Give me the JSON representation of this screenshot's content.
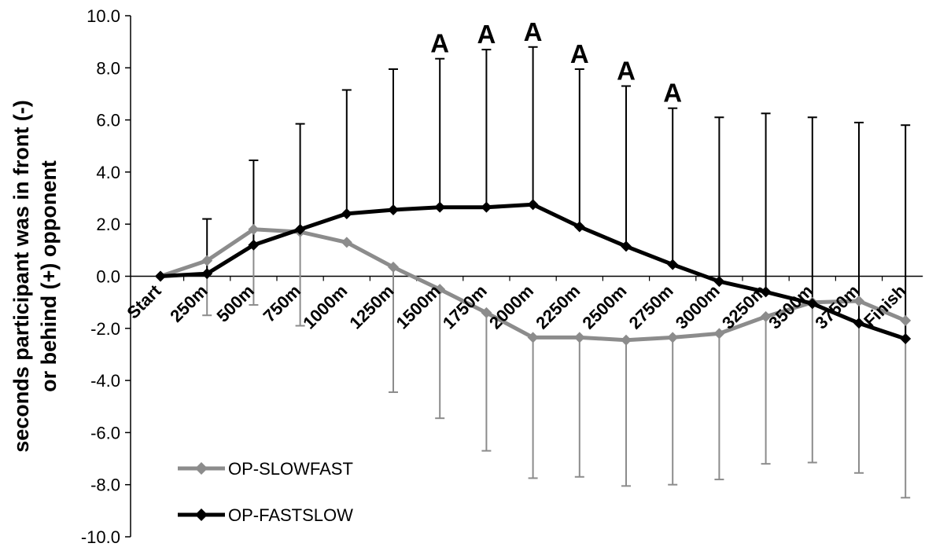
{
  "chart_data": {
    "type": "line",
    "title": "",
    "xlabel": "",
    "ylabel_lines": [
      "seconds participant was in front (-)",
      "or behind (+) opponent"
    ],
    "ylim": [
      -10.0,
      10.0
    ],
    "yticks": [
      "10.0",
      "8.0",
      "6.0",
      "4.0",
      "2.0",
      "0.0",
      "-2.0",
      "-4.0",
      "-6.0",
      "-8.0",
      "-10.0"
    ],
    "ytick_values": [
      10,
      8,
      6,
      4,
      2,
      0,
      -2,
      -4,
      -6,
      -8,
      -10
    ],
    "categories": [
      "Start",
      "250m",
      "500m",
      "750m",
      "1000m",
      "1250m",
      "1500m",
      "1750m",
      "2000m",
      "2250m",
      "2500m",
      "2750m",
      "3000m",
      "3250m",
      "3500m",
      "3750m",
      "Finish"
    ],
    "grid": false,
    "legend_position": "bottom-left",
    "series": [
      {
        "name": "OP-SLOWFAST",
        "color": "#8c8c8c",
        "marker": "diamond",
        "values": [
          0.0,
          0.6,
          1.8,
          1.7,
          1.3,
          0.35,
          -0.5,
          -1.4,
          -2.35,
          -2.35,
          -2.45,
          -2.35,
          -2.2,
          -1.55,
          -1.0,
          -0.95,
          -1.7
        ],
        "error_direction": "down",
        "error_ends": [
          null,
          -1.5,
          -1.1,
          -1.9,
          null,
          -4.45,
          -5.45,
          -6.7,
          -7.75,
          -7.7,
          -8.05,
          -8.0,
          -7.8,
          -7.2,
          -7.15,
          -7.55,
          -8.5
        ]
      },
      {
        "name": "OP-FASTSLOW",
        "color": "#000000",
        "marker": "diamond",
        "values": [
          0.0,
          0.1,
          1.2,
          1.8,
          2.4,
          2.55,
          2.65,
          2.65,
          2.75,
          1.9,
          1.15,
          0.45,
          -0.2,
          -0.6,
          -1.05,
          -1.8,
          -2.4
        ],
        "error_direction": "up",
        "error_ends": [
          null,
          2.2,
          4.45,
          5.85,
          7.15,
          7.95,
          8.35,
          8.7,
          8.8,
          7.95,
          7.3,
          6.45,
          6.1,
          6.25,
          6.1,
          5.9,
          5.8
        ]
      }
    ],
    "annotations": [
      {
        "category": "1500m",
        "text": "A"
      },
      {
        "category": "1750m",
        "text": "A"
      },
      {
        "category": "2000m",
        "text": "A"
      },
      {
        "category": "2250m",
        "text": "A"
      },
      {
        "category": "2500m",
        "text": "A"
      },
      {
        "category": "2750m",
        "text": "A"
      }
    ]
  }
}
